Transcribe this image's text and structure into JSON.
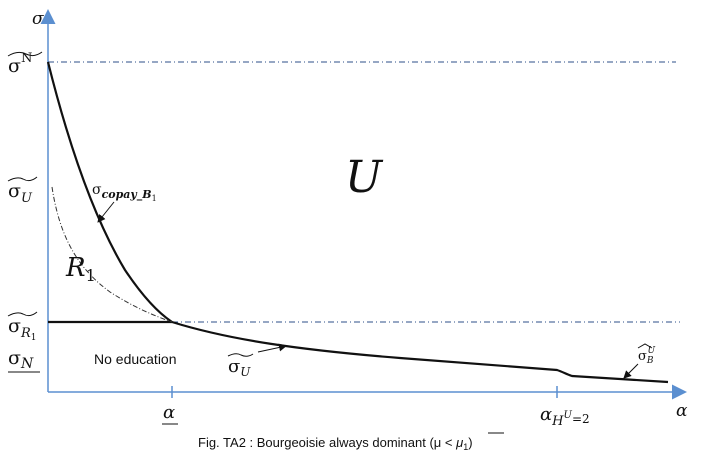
{
  "axes": {
    "y": "σ",
    "x": "α"
  },
  "y_labels": [
    {
      "base": "σ",
      "sup": "N"
    },
    {
      "base": "σ",
      "sub": "U"
    },
    {
      "base": "σ",
      "sub": "R",
      "subsub": "1"
    },
    {
      "base": "σ",
      "sub": "N"
    }
  ],
  "x_labels": [
    {
      "base": "α"
    },
    {
      "base": "α",
      "sub": "H",
      "subsup": "U",
      "tail": "=2"
    }
  ],
  "regions": {
    "U": "U",
    "R1": {
      "base": "R",
      "sub": "1"
    },
    "no_education": "No education"
  },
  "curve_labels": [
    {
      "base": "σ",
      "sub": "copay_B",
      "subsub": "1"
    },
    {
      "base": "σ",
      "sub": "U"
    },
    {
      "base": "σ",
      "sub": "B",
      "sup": "U"
    }
  ],
  "caption": {
    "text": "Fig. TA2 : Bourgeoisie always dominant  (μ < ",
    "mu": "μ",
    "sub": "1",
    "close": ")"
  }
}
